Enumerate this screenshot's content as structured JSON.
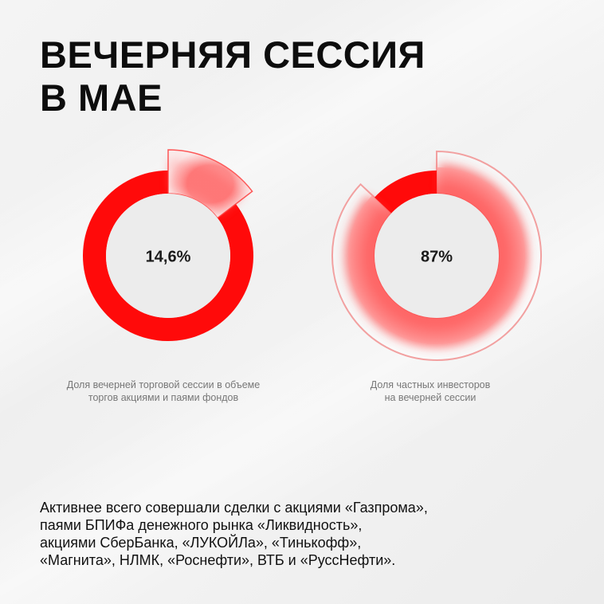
{
  "title": {
    "line1": "ВЕЧЕРНЯЯ СЕССИЯ",
    "line2": "В МАЕ"
  },
  "chart_data": [
    {
      "type": "pie",
      "variant": "donut",
      "values": [
        14.6,
        85.4
      ],
      "highlight_index": 0,
      "value_label": "14,6%",
      "caption_lines": [
        "Доля вечерней торговой сессии в объеме",
        "торгов акциями и паями фондов"
      ],
      "colors": {
        "main": "#ff0a0a",
        "highlight": "#ffd7d7",
        "highlight_outline": "#ff3b3b"
      }
    },
    {
      "type": "pie",
      "variant": "donut",
      "values": [
        87,
        13
      ],
      "highlight_index": 0,
      "value_label": "87%",
      "caption_lines": [
        "Доля частных инвесторов",
        "на вечерней сессии"
      ],
      "colors": {
        "main": "#ff0a0a",
        "highlight": "#ff4f4f",
        "highlight_outline": "#f2a0a0"
      }
    }
  ],
  "body": {
    "lines": [
      "Активнее всего совершали сделки с акциями «Газпрома»,",
      "паями БПИФа денежного рынка «Ликвидность»,",
      "акциями СберБанка, «ЛУКОЙЛа», «Тинькофф»,",
      "«Магнита», НЛМК, «Роснефти», ВТБ и «РуссНефти»."
    ]
  }
}
